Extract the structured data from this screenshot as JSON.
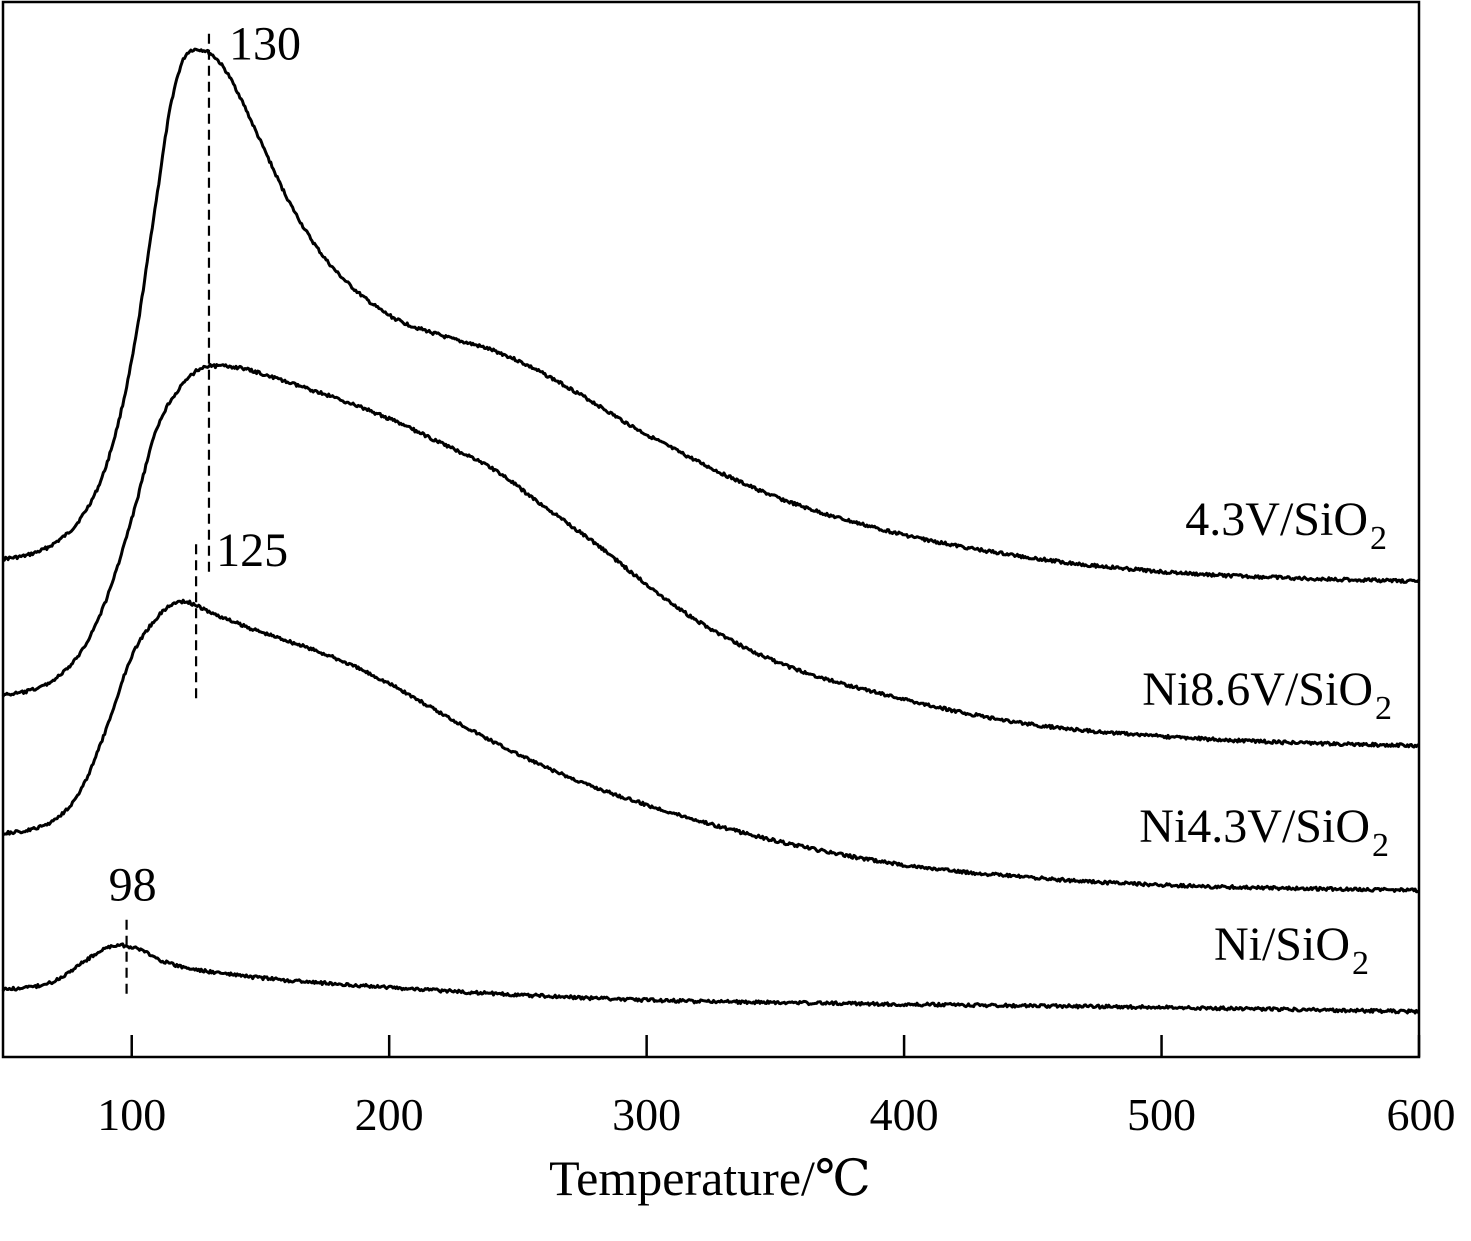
{
  "chart_data": {
    "type": "line",
    "title": "",
    "xlabel": "Temperature/℃",
    "ylabel": "",
    "xlim": [
      50,
      600
    ],
    "ylim": [
      0,
      1
    ],
    "grid": false,
    "x_ticks": [
      100,
      200,
      300,
      400,
      500,
      600
    ],
    "y_ticks": [],
    "legend": "inline labels at right end of each curve",
    "series": [
      {
        "name": "4.3V/SiO2",
        "label_main": "4.3V/SiO",
        "label_sub": "2",
        "x": [
          50,
          60,
          70,
          80,
          90,
          100,
          110,
          115,
          120,
          125,
          130,
          135,
          140,
          150,
          160,
          170,
          180,
          200,
          220,
          240,
          250,
          270,
          300,
          350,
          400,
          450,
          500,
          550,
          600
        ],
        "y": [
          0.472,
          0.476,
          0.487,
          0.51,
          0.56,
          0.66,
          0.82,
          0.9,
          0.945,
          0.955,
          0.952,
          0.94,
          0.92,
          0.868,
          0.816,
          0.774,
          0.743,
          0.703,
          0.684,
          0.67,
          0.66,
          0.634,
          0.59,
          0.531,
          0.495,
          0.473,
          0.46,
          0.454,
          0.451
        ]
      },
      {
        "name": "Ni8.6V/SiO2",
        "label_main": "Ni8.6V/SiO",
        "label_sub": "2",
        "x": [
          50,
          60,
          70,
          80,
          90,
          100,
          110,
          120,
          130,
          140,
          150,
          160,
          180,
          200,
          220,
          240,
          260,
          280,
          300,
          320,
          350,
          400,
          450,
          500,
          550,
          600
        ],
        "y": [
          0.343,
          0.347,
          0.358,
          0.383,
          0.433,
          0.51,
          0.597,
          0.638,
          0.655,
          0.654,
          0.648,
          0.64,
          0.624,
          0.605,
          0.582,
          0.558,
          0.522,
          0.487,
          0.448,
          0.413,
          0.375,
          0.339,
          0.315,
          0.304,
          0.298,
          0.295
        ]
      },
      {
        "name": "Ni4.3V/SiO2",
        "label_main": "Ni4.3V/SiO",
        "label_sub": "2",
        "x": [
          50,
          60,
          70,
          80,
          90,
          100,
          110,
          115,
          120,
          125,
          130,
          140,
          150,
          160,
          180,
          200,
          220,
          250,
          270,
          300,
          350,
          400,
          450,
          500,
          550,
          600
        ],
        "y": [
          0.212,
          0.215,
          0.225,
          0.252,
          0.31,
          0.38,
          0.417,
          0.428,
          0.432,
          0.428,
          0.422,
          0.412,
          0.403,
          0.395,
          0.377,
          0.354,
          0.326,
          0.287,
          0.265,
          0.239,
          0.205,
          0.182,
          0.17,
          0.163,
          0.16,
          0.158
        ]
      },
      {
        "name": "Ni/SiO2",
        "label_main": "Ni/SiO",
        "label_sub": "2",
        "x": [
          50,
          60,
          70,
          80,
          90,
          95,
          100,
          105,
          110,
          120,
          130,
          150,
          200,
          250,
          300,
          400,
          500,
          600
        ],
        "y": [
          0.064,
          0.066,
          0.072,
          0.088,
          0.103,
          0.106,
          0.104,
          0.1,
          0.093,
          0.085,
          0.081,
          0.075,
          0.066,
          0.059,
          0.054,
          0.05,
          0.047,
          0.043
        ]
      }
    ],
    "annotations": [
      {
        "text": "130",
        "x": 130,
        "y_from": 0.46,
        "y_to": 0.97
      },
      {
        "text": "125",
        "x": 125,
        "y_from": 0.34,
        "y_to": 0.49
      },
      {
        "text": "98",
        "x": 98,
        "y_from": 0.06,
        "y_to": 0.135
      }
    ]
  }
}
